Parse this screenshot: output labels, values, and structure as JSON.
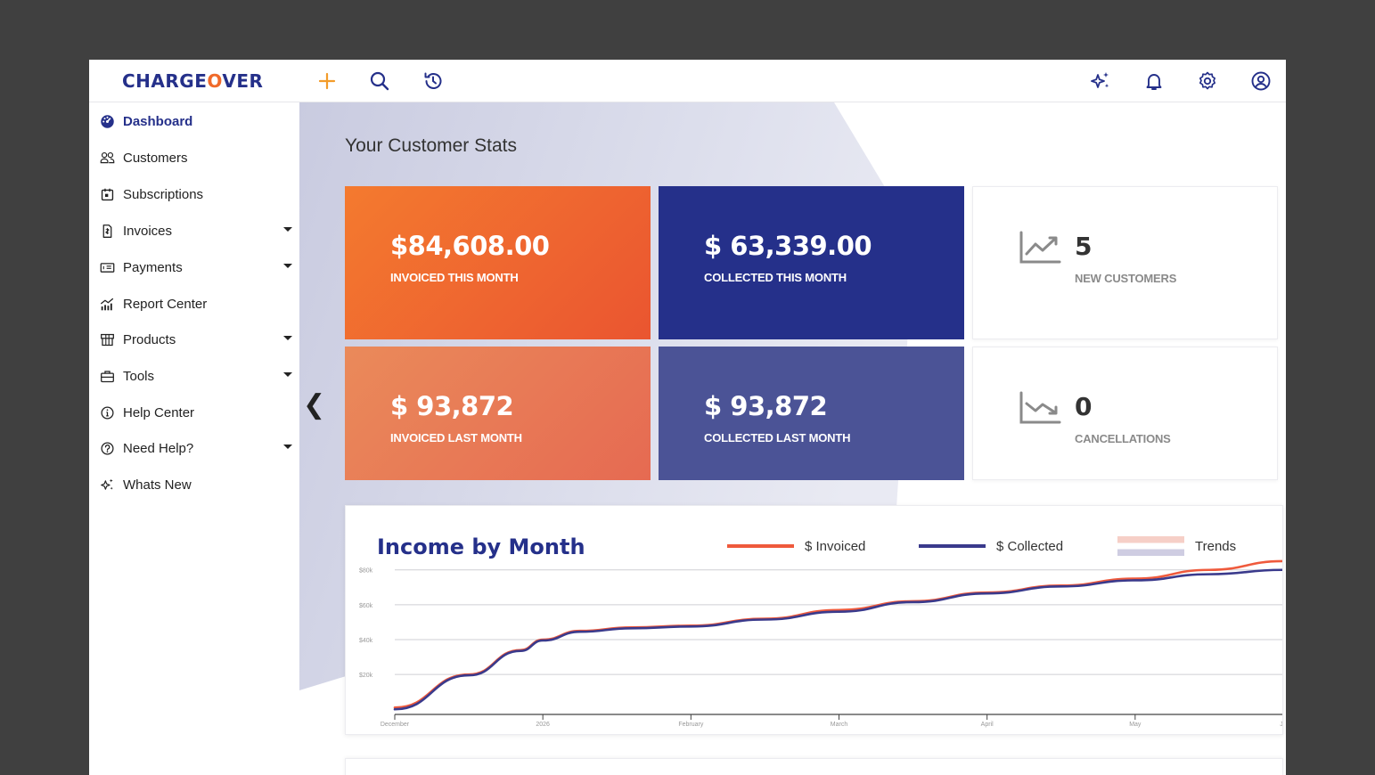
{
  "app": {
    "logo_left": "CHARGE",
    "logo_o": "O",
    "logo_right": "VER"
  },
  "topbar": {
    "icons": [
      "plus-icon",
      "search-icon",
      "history-icon",
      "sparkle-icon",
      "bell-icon",
      "gear-icon",
      "user-circle-icon"
    ]
  },
  "sidebar": {
    "items": [
      {
        "label": "Dashboard",
        "icon": "dashboard-icon",
        "active": true,
        "caret": false
      },
      {
        "label": "Customers",
        "icon": "users-icon",
        "active": false,
        "caret": false
      },
      {
        "label": "Subscriptions",
        "icon": "calendar-icon",
        "active": false,
        "caret": false
      },
      {
        "label": "Invoices",
        "icon": "invoice-icon",
        "active": false,
        "caret": true
      },
      {
        "label": "Payments",
        "icon": "payment-icon",
        "active": false,
        "caret": true
      },
      {
        "label": "Report Center",
        "icon": "report-icon",
        "active": false,
        "caret": false
      },
      {
        "label": "Products",
        "icon": "box-icon",
        "active": false,
        "caret": true
      },
      {
        "label": "Tools",
        "icon": "toolbox-icon",
        "active": false,
        "caret": true
      },
      {
        "label": "Help Center",
        "icon": "info-icon",
        "active": false,
        "caret": false
      },
      {
        "label": "Need Help?",
        "icon": "question-icon",
        "active": false,
        "caret": true
      },
      {
        "label": "Whats New",
        "icon": "sparkle-icon",
        "active": false,
        "caret": false
      }
    ]
  },
  "main": {
    "section_title": "Your Customer Stats",
    "collapse_glyph": "❮",
    "stats": [
      {
        "amount": "$84,608.00",
        "caption": "INVOICED THIS MONTH"
      },
      {
        "amount": "$ 63,339.00",
        "caption": "COLLECTED THIS MONTH"
      },
      {
        "amount": "5",
        "caption": "NEW CUSTOMERS"
      },
      {
        "amount": "$ 93,872",
        "caption": "INVOICED LAST MONTH"
      },
      {
        "amount": "$ 93,872",
        "caption": "COLLECTED LAST MONTH"
      },
      {
        "amount": "0",
        "caption": "CANCELLATIONS"
      }
    ]
  },
  "colors": {
    "brand_navy": "#25308a",
    "brand_orange": "#f06a2a",
    "invoiced_line": "#ef5a3c",
    "collected_line": "#3a3a8c"
  },
  "chart_data": {
    "type": "line",
    "title": "Income by Month",
    "categories": [
      "December",
      "2026",
      "February",
      "March",
      "April",
      "May",
      "Ju"
    ],
    "y_ticks": [
      "$80k",
      "$60k",
      "$40k",
      "$20k"
    ],
    "ylim": [
      -6000,
      86000
    ],
    "x_extent": [
      0,
      6
    ],
    "legend": [
      "$ Invoiced",
      "$ Collected",
      "Trends"
    ],
    "legend_position": "top-right",
    "grid": true,
    "series": [
      {
        "name": "$ Invoiced",
        "color": "#ef5a3c",
        "x": [
          0,
          0.5,
          0.85,
          1,
          1.25,
          1.6,
          2,
          2.5,
          3,
          3.5,
          4,
          4.5,
          5,
          5.5,
          6
        ],
        "y": [
          1000,
          20000,
          34000,
          40000,
          45000,
          47000,
          48000,
          52000,
          57000,
          62000,
          67000,
          71000,
          75000,
          80000,
          85000
        ]
      },
      {
        "name": "$ Collected",
        "color": "#3a3a8c",
        "x": [
          0,
          0.5,
          0.85,
          1,
          1.25,
          1.6,
          2,
          2.5,
          3,
          3.5,
          4,
          4.5,
          5,
          5.5,
          6
        ],
        "y": [
          0,
          19500,
          33500,
          39500,
          44500,
          46500,
          47500,
          51500,
          56000,
          61500,
          66500,
          70500,
          74000,
          77500,
          80000
        ]
      }
    ]
  }
}
